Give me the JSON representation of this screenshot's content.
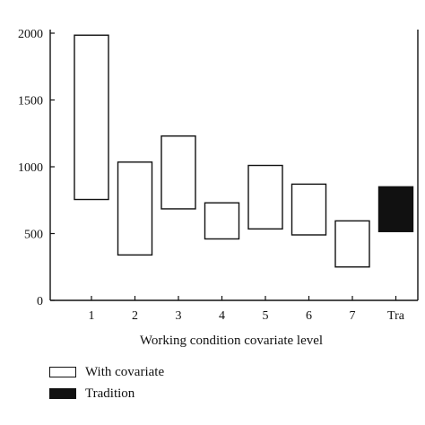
{
  "chart_data": {
    "type": "bar",
    "subtype": "floating-range",
    "categories": [
      "1",
      "2",
      "3",
      "4",
      "5",
      "6",
      "7",
      "Tra"
    ],
    "series": [
      {
        "name": "With covariate",
        "color": "#ffffff",
        "ranges": [
          [
            755,
            1985
          ],
          [
            340,
            1035
          ],
          [
            685,
            1230
          ],
          [
            460,
            730
          ],
          [
            535,
            1010
          ],
          [
            490,
            870
          ],
          [
            250,
            595
          ],
          null
        ]
      },
      {
        "name": "Tradition",
        "color": "#111111",
        "ranges": [
          null,
          null,
          null,
          null,
          null,
          null,
          null,
          [
            515,
            850
          ]
        ]
      }
    ],
    "xlabel": "Working condition covariate level",
    "ylabel": "",
    "ylim": [
      0,
      2000
    ],
    "yticks": [
      0,
      500,
      1000,
      1500,
      2000
    ],
    "grid": false,
    "legend_position": "bottom-left"
  }
}
